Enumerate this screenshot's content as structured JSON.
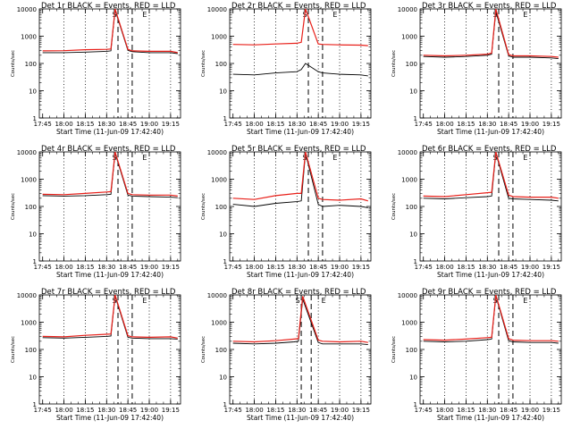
{
  "figure": {
    "xlabel": "Start Time (11-Jun-09 17:42:40)",
    "ylabel": "Counts/sec",
    "xticks": [
      "17:45",
      "18:00",
      "18:15",
      "18:30",
      "18:45",
      "19:00",
      "19:15"
    ],
    "yticks": [
      "1",
      "10",
      "100",
      "1000",
      "10000"
    ],
    "colors": {
      "events": "#000000",
      "lld": "#e8201a",
      "axis": "#000000",
      "background": "#ffffff"
    }
  },
  "chart_data": [
    {
      "type": "line",
      "title": "Det 1r BLACK = Events, RED = LLD",
      "x_range": [
        "17:42:40",
        "19:22"
      ],
      "ylim": [
        1,
        10000
      ],
      "yscale": "log",
      "flags": [
        "S",
        "E"
      ],
      "vlines_dashed": [
        "18:38",
        "18:48"
      ],
      "vlines_dotted": [
        "18:00",
        "18:15",
        "18:30",
        "18:45",
        "19:00",
        "19:15"
      ],
      "series": [
        {
          "name": "BLACK = Events",
          "x": [
            "17:45",
            "18:00",
            "18:15",
            "18:30",
            "18:33",
            "18:36",
            "18:45",
            "18:48",
            "19:00",
            "19:15",
            "19:20"
          ],
          "y": [
            250,
            250,
            260,
            280,
            290,
            9000,
            300,
            270,
            250,
            250,
            230
          ]
        },
        {
          "name": "RED = LLD",
          "x": [
            "17:45",
            "18:00",
            "18:15",
            "18:30",
            "18:33",
            "18:36",
            "18:45",
            "18:48",
            "19:00",
            "19:15",
            "19:20"
          ],
          "y": [
            290,
            295,
            320,
            330,
            340,
            10000,
            330,
            290,
            280,
            280,
            250
          ]
        }
      ]
    },
    {
      "type": "line",
      "title": "Det 2r BLACK = Events, RED = LLD",
      "x_range": [
        "17:42:40",
        "19:22"
      ],
      "ylim": [
        1,
        10000
      ],
      "yscale": "log",
      "flags": [
        "S",
        "E"
      ],
      "vlines_dashed": [
        "18:38",
        "18:48"
      ],
      "vlines_dotted": [
        "18:00",
        "18:15",
        "18:30",
        "18:45",
        "19:00",
        "19:15"
      ],
      "series": [
        {
          "name": "BLACK = Events",
          "x": [
            "17:45",
            "18:00",
            "18:15",
            "18:30",
            "18:33",
            "18:36",
            "18:45",
            "18:48",
            "19:00",
            "19:15",
            "19:20"
          ],
          "y": [
            40,
            38,
            45,
            50,
            60,
            100,
            50,
            45,
            40,
            38,
            35
          ]
        },
        {
          "name": "RED = LLD",
          "x": [
            "17:45",
            "18:00",
            "18:15",
            "18:30",
            "18:33",
            "18:36",
            "18:45",
            "18:48",
            "19:00",
            "19:15",
            "19:20"
          ],
          "y": [
            500,
            480,
            520,
            550,
            600,
            10000,
            520,
            500,
            480,
            470,
            450
          ]
        }
      ]
    },
    {
      "type": "line",
      "title": "Det 3r BLACK = Events, RED = LLD",
      "x_range": [
        "17:42:40",
        "19:22"
      ],
      "ylim": [
        1,
        10000
      ],
      "yscale": "log",
      "flags": [
        "S",
        "E"
      ],
      "vlines_dashed": [
        "18:38",
        "18:48"
      ],
      "vlines_dotted": [
        "18:00",
        "18:15",
        "18:30",
        "18:45",
        "19:00",
        "19:15"
      ],
      "series": [
        {
          "name": "BLACK = Events",
          "x": [
            "17:45",
            "18:00",
            "18:15",
            "18:30",
            "18:33",
            "18:36",
            "18:45",
            "18:48",
            "19:00",
            "19:15",
            "19:20"
          ],
          "y": [
            180,
            170,
            180,
            200,
            220,
            8000,
            190,
            170,
            170,
            160,
            150
          ]
        },
        {
          "name": "RED = LLD",
          "x": [
            "17:45",
            "18:00",
            "18:15",
            "18:30",
            "18:33",
            "18:36",
            "18:45",
            "18:48",
            "19:00",
            "19:15",
            "19:20"
          ],
          "y": [
            200,
            190,
            200,
            220,
            240,
            10000,
            210,
            190,
            190,
            180,
            170
          ]
        }
      ]
    },
    {
      "type": "line",
      "title": "Det 4r BLACK = Events, RED = LLD",
      "x_range": [
        "17:42:40",
        "19:22"
      ],
      "ylim": [
        1,
        10000
      ],
      "yscale": "log",
      "flags": [
        "S",
        "E"
      ],
      "vlines_dashed": [
        "18:38",
        "18:48"
      ],
      "vlines_dotted": [
        "18:00",
        "18:15",
        "18:30",
        "18:45",
        "19:00",
        "19:15"
      ],
      "series": [
        {
          "name": "BLACK = Events",
          "x": [
            "17:45",
            "18:00",
            "18:15",
            "18:30",
            "18:33",
            "18:36",
            "18:45",
            "18:48",
            "19:00",
            "19:15",
            "19:20"
          ],
          "y": [
            250,
            240,
            250,
            270,
            280,
            9000,
            260,
            240,
            230,
            220,
            210
          ]
        },
        {
          "name": "RED = LLD",
          "x": [
            "17:45",
            "18:00",
            "18:15",
            "18:30",
            "18:33",
            "18:36",
            "18:45",
            "18:48",
            "19:00",
            "19:15",
            "19:20"
          ],
          "y": [
            280,
            270,
            300,
            340,
            350,
            10000,
            300,
            270,
            260,
            260,
            240
          ]
        }
      ]
    },
    {
      "type": "line",
      "title": "Det 5r BLACK = Events, RED = LLD",
      "x_range": [
        "17:42:40",
        "19:22"
      ],
      "ylim": [
        1,
        10000
      ],
      "yscale": "log",
      "flags": [
        "S",
        "E"
      ],
      "vlines_dashed": [
        "18:38",
        "18:48"
      ],
      "vlines_dotted": [
        "18:00",
        "18:15",
        "18:30",
        "18:45",
        "19:00",
        "19:15"
      ],
      "series": [
        {
          "name": "BLACK = Events",
          "x": [
            "17:45",
            "18:00",
            "18:15",
            "18:30",
            "18:33",
            "18:36",
            "18:45",
            "18:48",
            "19:00",
            "19:15",
            "19:20"
          ],
          "y": [
            120,
            100,
            130,
            150,
            160,
            9000,
            120,
            100,
            110,
            100,
            90
          ]
        },
        {
          "name": "RED = LLD",
          "x": [
            "17:45",
            "18:00",
            "18:15",
            "18:30",
            "18:33",
            "18:36",
            "18:45",
            "18:48",
            "19:00",
            "19:15",
            "19:20"
          ],
          "y": [
            200,
            180,
            250,
            300,
            300,
            10000,
            200,
            180,
            170,
            190,
            160
          ]
        }
      ]
    },
    {
      "type": "line",
      "title": "Det 6r BLACK = Events, RED = LLD",
      "x_range": [
        "17:42:40",
        "19:22"
      ],
      "ylim": [
        1,
        10000
      ],
      "yscale": "log",
      "flags": [
        "S",
        "E"
      ],
      "vlines_dashed": [
        "18:38",
        "18:48"
      ],
      "vlines_dotted": [
        "18:00",
        "18:15",
        "18:30",
        "18:45",
        "19:00",
        "19:15"
      ],
      "series": [
        {
          "name": "BLACK = Events",
          "x": [
            "17:45",
            "18:00",
            "18:15",
            "18:30",
            "18:33",
            "18:36",
            "18:45",
            "18:48",
            "19:00",
            "19:15",
            "19:20"
          ],
          "y": [
            200,
            190,
            210,
            230,
            240,
            9000,
            200,
            190,
            180,
            170,
            160
          ]
        },
        {
          "name": "RED = LLD",
          "x": [
            "17:45",
            "18:00",
            "18:15",
            "18:30",
            "18:33",
            "18:36",
            "18:45",
            "18:48",
            "19:00",
            "19:15",
            "19:20"
          ],
          "y": [
            240,
            230,
            270,
            320,
            330,
            10000,
            260,
            230,
            220,
            220,
            200
          ]
        }
      ]
    },
    {
      "type": "line",
      "title": "Det 7r BLACK = Events, RED = LLD",
      "x_range": [
        "17:42:40",
        "19:22"
      ],
      "ylim": [
        1,
        10000
      ],
      "yscale": "log",
      "flags": [
        "S",
        "E"
      ],
      "vlines_dashed": [
        "18:38",
        "18:48"
      ],
      "vlines_dotted": [
        "18:00",
        "18:15",
        "18:30",
        "18:45",
        "19:00",
        "19:15"
      ],
      "series": [
        {
          "name": "BLACK = Events",
          "x": [
            "17:45",
            "18:00",
            "18:15",
            "18:30",
            "18:33",
            "18:36",
            "18:45",
            "18:48",
            "19:00",
            "19:15",
            "19:20"
          ],
          "y": [
            270,
            260,
            280,
            300,
            310,
            9000,
            280,
            260,
            250,
            250,
            240
          ]
        },
        {
          "name": "RED = LLD",
          "x": [
            "17:45",
            "18:00",
            "18:15",
            "18:30",
            "18:33",
            "18:36",
            "18:45",
            "18:48",
            "19:00",
            "19:15",
            "19:20"
          ],
          "y": [
            300,
            290,
            330,
            360,
            370,
            10000,
            320,
            290,
            280,
            290,
            260
          ]
        }
      ]
    },
    {
      "type": "line",
      "title": "Det 8r BLACK = Events, RED = LLD",
      "x_range": [
        "17:42:40",
        "19:22"
      ],
      "ylim": [
        1,
        10000
      ],
      "yscale": "log",
      "flags": [
        "S",
        "E"
      ],
      "vlines_dashed": [
        "18:33",
        "18:40"
      ],
      "vlines_dotted": [
        "18:00",
        "18:15",
        "18:30",
        "18:45",
        "19:00",
        "19:15"
      ],
      "series": [
        {
          "name": "BLACK = Events",
          "x": [
            "17:45",
            "18:00",
            "18:15",
            "18:28",
            "18:31",
            "18:34",
            "18:45",
            "18:48",
            "19:00",
            "19:15",
            "19:20"
          ],
          "y": [
            170,
            160,
            170,
            190,
            200,
            7000,
            180,
            160,
            160,
            160,
            150
          ]
        },
        {
          "name": "RED = LLD",
          "x": [
            "17:45",
            "18:00",
            "18:15",
            "18:28",
            "18:31",
            "18:34",
            "18:45",
            "18:48",
            "19:00",
            "19:15",
            "19:20"
          ],
          "y": [
            200,
            190,
            210,
            240,
            250,
            9000,
            220,
            200,
            190,
            200,
            180
          ]
        }
      ]
    },
    {
      "type": "line",
      "title": "Det 9r BLACK = Events, RED = LLD",
      "x_range": [
        "17:42:40",
        "19:22"
      ],
      "ylim": [
        1,
        10000
      ],
      "yscale": "log",
      "flags": [
        "S",
        "E"
      ],
      "vlines_dashed": [
        "18:38",
        "18:48"
      ],
      "vlines_dotted": [
        "18:00",
        "18:15",
        "18:30",
        "18:45",
        "19:00",
        "19:15"
      ],
      "series": [
        {
          "name": "BLACK = Events",
          "x": [
            "17:45",
            "18:00",
            "18:15",
            "18:30",
            "18:33",
            "18:36",
            "18:45",
            "18:48",
            "19:00",
            "19:15",
            "19:20"
          ],
          "y": [
            200,
            190,
            200,
            230,
            240,
            9000,
            210,
            190,
            180,
            180,
            170
          ]
        },
        {
          "name": "RED = LLD",
          "x": [
            "17:45",
            "18:00",
            "18:15",
            "18:30",
            "18:33",
            "18:36",
            "18:45",
            "18:48",
            "19:00",
            "19:15",
            "19:20"
          ],
          "y": [
            230,
            220,
            240,
            270,
            280,
            10000,
            250,
            220,
            210,
            210,
            200
          ]
        }
      ]
    }
  ]
}
